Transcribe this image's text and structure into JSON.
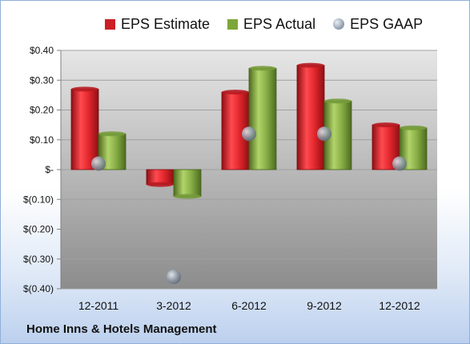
{
  "footer": {
    "company": "Home Inns & Hotels Management"
  },
  "colors": {
    "estimate": "#cc1f26",
    "actual": "#7ca63a",
    "gaap": "#9aa7b5"
  },
  "chart_data": {
    "type": "bar",
    "title": "",
    "xlabel": "",
    "ylabel": "",
    "categories": [
      "12-2011",
      "3-2012",
      "6-2012",
      "9-2012",
      "12-2012"
    ],
    "ylim": [
      -0.4,
      0.4
    ],
    "yticks": [
      0.4,
      0.3,
      0.2,
      0.1,
      0,
      -0.1,
      -0.2,
      -0.3,
      -0.4
    ],
    "ytick_labels": [
      "$0.40",
      "$0.30",
      "$0.20",
      "$0.10",
      "$-",
      "$(0.10)",
      "$(0.20)",
      "$(0.30)",
      "$(0.40)"
    ],
    "legend_position": "top",
    "grid": true,
    "series": [
      {
        "name": "EPS Estimate",
        "kind": "bar",
        "values": [
          0.27,
          -0.05,
          0.26,
          0.35,
          0.15
        ]
      },
      {
        "name": "EPS Actual",
        "kind": "bar",
        "values": [
          0.12,
          -0.09,
          0.34,
          0.23,
          0.14
        ]
      },
      {
        "name": "EPS GAAP",
        "kind": "point",
        "values": [
          0.02,
          -0.36,
          0.12,
          0.12,
          0.02
        ]
      }
    ]
  }
}
